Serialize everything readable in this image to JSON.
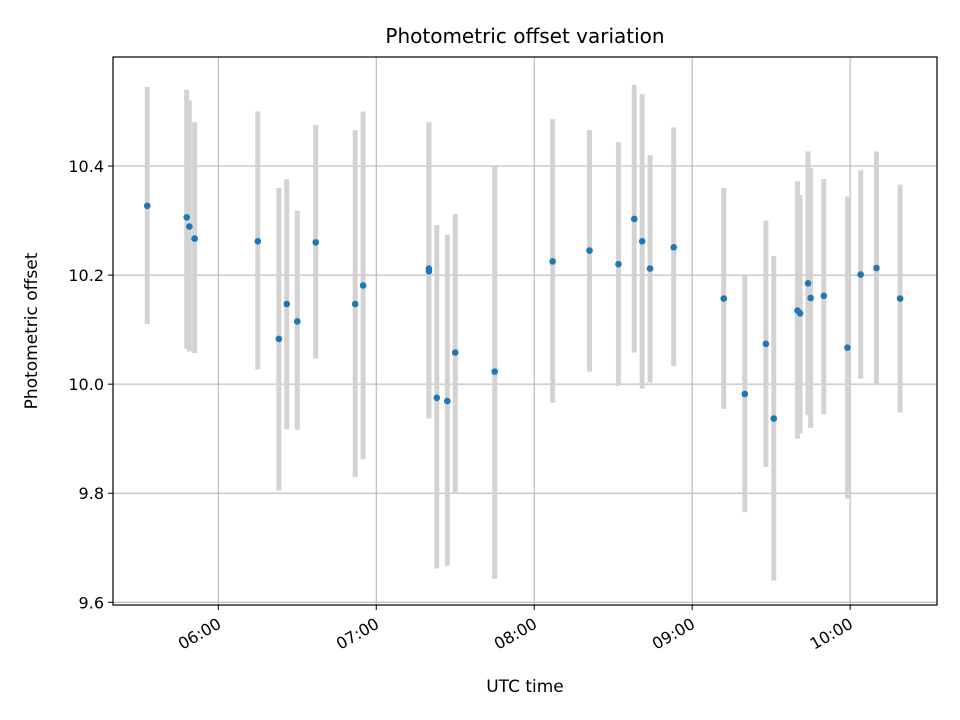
{
  "chart_data": {
    "type": "scatter",
    "title": "Photometric offset variation",
    "xlabel": "UTC time",
    "ylabel": "Photometric offset",
    "x_axis_type": "time",
    "xlim": [
      "05:20",
      "10:33"
    ],
    "ylim": [
      9.595,
      10.6
    ],
    "x_ticks": [
      "06:00",
      "07:00",
      "08:00",
      "09:00",
      "10:00"
    ],
    "y_ticks": [
      9.6,
      9.8,
      10.0,
      10.2,
      10.4
    ],
    "y_tick_labels": [
      "9.6",
      "9.8",
      "10.0",
      "10.2",
      "10.4"
    ],
    "grid": true,
    "marker_color": "#1f77b4",
    "errorbar_color": "#d3d3d3",
    "points": [
      {
        "t": "05:33",
        "y": 10.327,
        "lo": 10.11,
        "hi": 10.545
      },
      {
        "t": "05:48",
        "y": 10.306,
        "lo": 10.065,
        "hi": 10.54
      },
      {
        "t": "05:49",
        "y": 10.289,
        "lo": 10.06,
        "hi": 10.52
      },
      {
        "t": "05:51",
        "y": 10.267,
        "lo": 10.057,
        "hi": 10.48
      },
      {
        "t": "06:15",
        "y": 10.262,
        "lo": 10.027,
        "hi": 10.5
      },
      {
        "t": "06:23",
        "y": 10.083,
        "lo": 9.805,
        "hi": 10.36
      },
      {
        "t": "06:26",
        "y": 10.147,
        "lo": 9.917,
        "hi": 10.376
      },
      {
        "t": "06:30",
        "y": 10.115,
        "lo": 9.916,
        "hi": 10.318
      },
      {
        "t": "06:37",
        "y": 10.26,
        "lo": 10.047,
        "hi": 10.475
      },
      {
        "t": "06:52",
        "y": 10.147,
        "lo": 9.83,
        "hi": 10.466
      },
      {
        "t": "06:55",
        "y": 10.181,
        "lo": 9.862,
        "hi": 10.5
      },
      {
        "t": "07:20",
        "y": 10.212,
        "lo": 9.937,
        "hi": 10.48
      },
      {
        "t": "07:20",
        "y": 10.207,
        "lo": 9.94,
        "hi": 10.475
      },
      {
        "t": "07:23",
        "y": 9.975,
        "lo": 9.662,
        "hi": 10.292
      },
      {
        "t": "07:27",
        "y": 9.969,
        "lo": 9.667,
        "hi": 10.274
      },
      {
        "t": "07:30",
        "y": 10.058,
        "lo": 9.8,
        "hi": 10.312
      },
      {
        "t": "07:45",
        "y": 10.023,
        "lo": 9.643,
        "hi": 10.4
      },
      {
        "t": "08:07",
        "y": 10.225,
        "lo": 9.966,
        "hi": 10.486
      },
      {
        "t": "08:21",
        "y": 10.245,
        "lo": 10.023,
        "hi": 10.466
      },
      {
        "t": "08:32",
        "y": 10.22,
        "lo": 9.997,
        "hi": 10.444
      },
      {
        "t": "08:38",
        "y": 10.303,
        "lo": 10.058,
        "hi": 10.549
      },
      {
        "t": "08:41",
        "y": 10.262,
        "lo": 9.992,
        "hi": 10.532
      },
      {
        "t": "08:44",
        "y": 10.212,
        "lo": 10.003,
        "hi": 10.42
      },
      {
        "t": "08:53",
        "y": 10.251,
        "lo": 10.033,
        "hi": 10.471
      },
      {
        "t": "09:12",
        "y": 10.157,
        "lo": 9.955,
        "hi": 10.36
      },
      {
        "t": "09:20",
        "y": 9.982,
        "lo": 9.765,
        "hi": 10.2
      },
      {
        "t": "09:28",
        "y": 10.074,
        "lo": 9.848,
        "hi": 10.3
      },
      {
        "t": "09:31",
        "y": 9.937,
        "lo": 9.64,
        "hi": 10.235
      },
      {
        "t": "09:40",
        "y": 10.135,
        "lo": 9.9,
        "hi": 10.372
      },
      {
        "t": "09:41",
        "y": 10.13,
        "lo": 9.91,
        "hi": 10.347
      },
      {
        "t": "09:44",
        "y": 10.185,
        "lo": 9.943,
        "hi": 10.427
      },
      {
        "t": "09:45",
        "y": 10.158,
        "lo": 9.92,
        "hi": 10.396
      },
      {
        "t": "09:50",
        "y": 10.162,
        "lo": 9.945,
        "hi": 10.376
      },
      {
        "t": "09:59",
        "y": 10.067,
        "lo": 9.79,
        "hi": 10.344
      },
      {
        "t": "10:04",
        "y": 10.201,
        "lo": 10.01,
        "hi": 10.392
      },
      {
        "t": "10:10",
        "y": 10.213,
        "lo": 10.0,
        "hi": 10.427
      },
      {
        "t": "10:19",
        "y": 10.157,
        "lo": 9.948,
        "hi": 10.366
      }
    ]
  }
}
